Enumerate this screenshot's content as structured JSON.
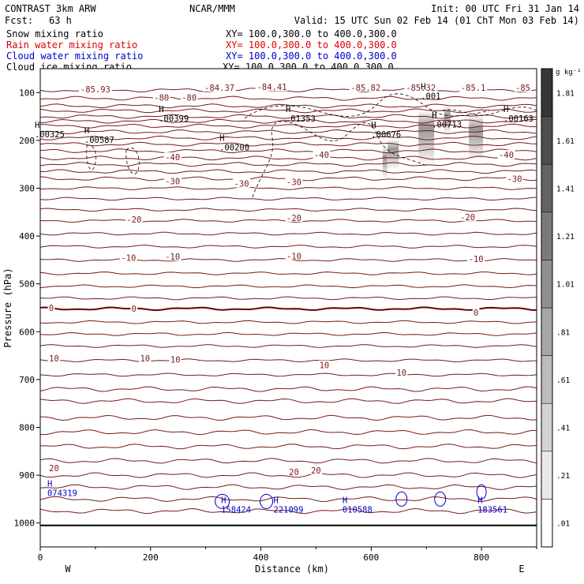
{
  "header": {
    "model": "CONTRAST   3km ARW",
    "org": "NCAR/MMM",
    "init": "Init: 00 UTC Fri 31 Jan 14",
    "fcst_label": "Fcst:",
    "fcst_value": "63 h",
    "valid": "Valid: 15 UTC Sun 02 Feb 14 (01 ChT Mon 03 Feb 14)"
  },
  "legend": [
    {
      "name": "Snow mixing ratio",
      "color": "#000000",
      "xy": "XY= 100.0,300.0 to 400.0,300.0"
    },
    {
      "name": "Rain water mixing ratio",
      "color": "#e00000",
      "xy": "XY= 100.0,300.0 to 400.0,300.0"
    },
    {
      "name": "Cloud water mixing ratio",
      "color": "#0000cc",
      "xy": "XY= 100.0,300.0 to 400.0,300.0"
    },
    {
      "name": "Cloud ice mixing ratio",
      "color": "#000000",
      "xy": "XY= 100.0,300.0 to 400.0,300.0"
    }
  ],
  "colors": {
    "temperature": "#7a1a1a",
    "freezing": "#6a0000",
    "cloud_water": "#0000cc",
    "snow": "#404040"
  },
  "chart_data": {
    "type": "contour-cross-section",
    "xlabel": "Distance (km)",
    "ylabel": "Pressure (hPa)",
    "xlim": [
      0,
      900
    ],
    "ylim": [
      1050,
      50
    ],
    "xticks": [
      0,
      200,
      400,
      600,
      800
    ],
    "yticks": [
      100,
      200,
      300,
      400,
      500,
      600,
      700,
      800,
      900,
      1000
    ],
    "x_end_labels": {
      "left": "W",
      "right": "E"
    },
    "colorbar": {
      "units": "g kg⁻¹",
      "labels": [
        ".01",
        ".21",
        ".41",
        ".61",
        ".81",
        "1.01",
        "1.21",
        "1.41",
        "1.61",
        "1.81"
      ],
      "range": [
        0,
        2.0
      ]
    },
    "temperature_contours": [
      {
        "label": "-85.93",
        "x": 100,
        "p": 93
      },
      {
        "label": "-84.37",
        "x": 325,
        "p": 90
      },
      {
        "label": "-84.41",
        "x": 420,
        "p": 88
      },
      {
        "label": "-85.82",
        "x": 590,
        "p": 90
      },
      {
        "label": "-85.32",
        "x": 690,
        "p": 90
      },
      {
        "label": "-85.1",
        "x": 785,
        "p": 90
      },
      {
        "label": "-85",
        "x": 875,
        "p": 90
      },
      {
        "label": "-80",
        "x": 220,
        "p": 110
      },
      {
        "label": "-80",
        "x": 270,
        "p": 110
      },
      {
        "label": "-40",
        "x": 240,
        "p": 235
      },
      {
        "label": "-40",
        "x": 510,
        "p": 230
      },
      {
        "label": "-40",
        "x": 845,
        "p": 230
      },
      {
        "label": "-30",
        "x": 240,
        "p": 285
      },
      {
        "label": "-30",
        "x": 365,
        "p": 290
      },
      {
        "label": "-30",
        "x": 460,
        "p": 287
      },
      {
        "label": "-30",
        "x": 860,
        "p": 280
      },
      {
        "label": "-20",
        "x": 170,
        "p": 365
      },
      {
        "label": "-20",
        "x": 460,
        "p": 362
      },
      {
        "label": "-20",
        "x": 775,
        "p": 360
      },
      {
        "label": "-10",
        "x": 160,
        "p": 445
      },
      {
        "label": "-10",
        "x": 240,
        "p": 443
      },
      {
        "label": "-10",
        "x": 460,
        "p": 442
      },
      {
        "label": "-10",
        "x": 790,
        "p": 448
      },
      {
        "label": "0",
        "x": 20,
        "p": 550
      },
      {
        "label": "0",
        "x": 170,
        "p": 552
      },
      {
        "label": "0",
        "x": 790,
        "p": 560
      },
      {
        "label": "10",
        "x": 25,
        "p": 656
      },
      {
        "label": "10",
        "x": 190,
        "p": 656
      },
      {
        "label": "10",
        "x": 245,
        "p": 658
      },
      {
        "label": "10",
        "x": 515,
        "p": 670
      },
      {
        "label": "10",
        "x": 655,
        "p": 685
      },
      {
        "label": "20",
        "x": 25,
        "p": 885
      },
      {
        "label": "20",
        "x": 460,
        "p": 893
      },
      {
        "label": "20",
        "x": 500,
        "p": 890
      }
    ],
    "high_markers": [
      {
        "label": ".00399",
        "x": 235,
        "p": 147
      },
      {
        "label": ".00325",
        "x": 10,
        "p": 180
      },
      {
        "label": ".00587",
        "x": 100,
        "p": 192
      },
      {
        "label": ".00200",
        "x": 345,
        "p": 208
      },
      {
        "label": ".01353",
        "x": 465,
        "p": 147
      },
      {
        "label": ".00676",
        "x": 620,
        "p": 180
      },
      {
        "label": ".00713",
        "x": 730,
        "p": 160
      },
      {
        "label": ".00163",
        "x": 860,
        "p": 147
      },
      {
        "label": ".001",
        "x": 710,
        "p": 100
      }
    ],
    "cloud_water_markers": [
      {
        "label": "074319",
        "x": 30,
        "p": 930
      },
      {
        "label": "158424",
        "x": 345,
        "p": 965
      },
      {
        "label": "221099",
        "x": 440,
        "p": 965
      },
      {
        "label": "010588",
        "x": 565,
        "p": 965
      },
      {
        "label": "183561",
        "x": 810,
        "p": 965
      }
    ]
  }
}
